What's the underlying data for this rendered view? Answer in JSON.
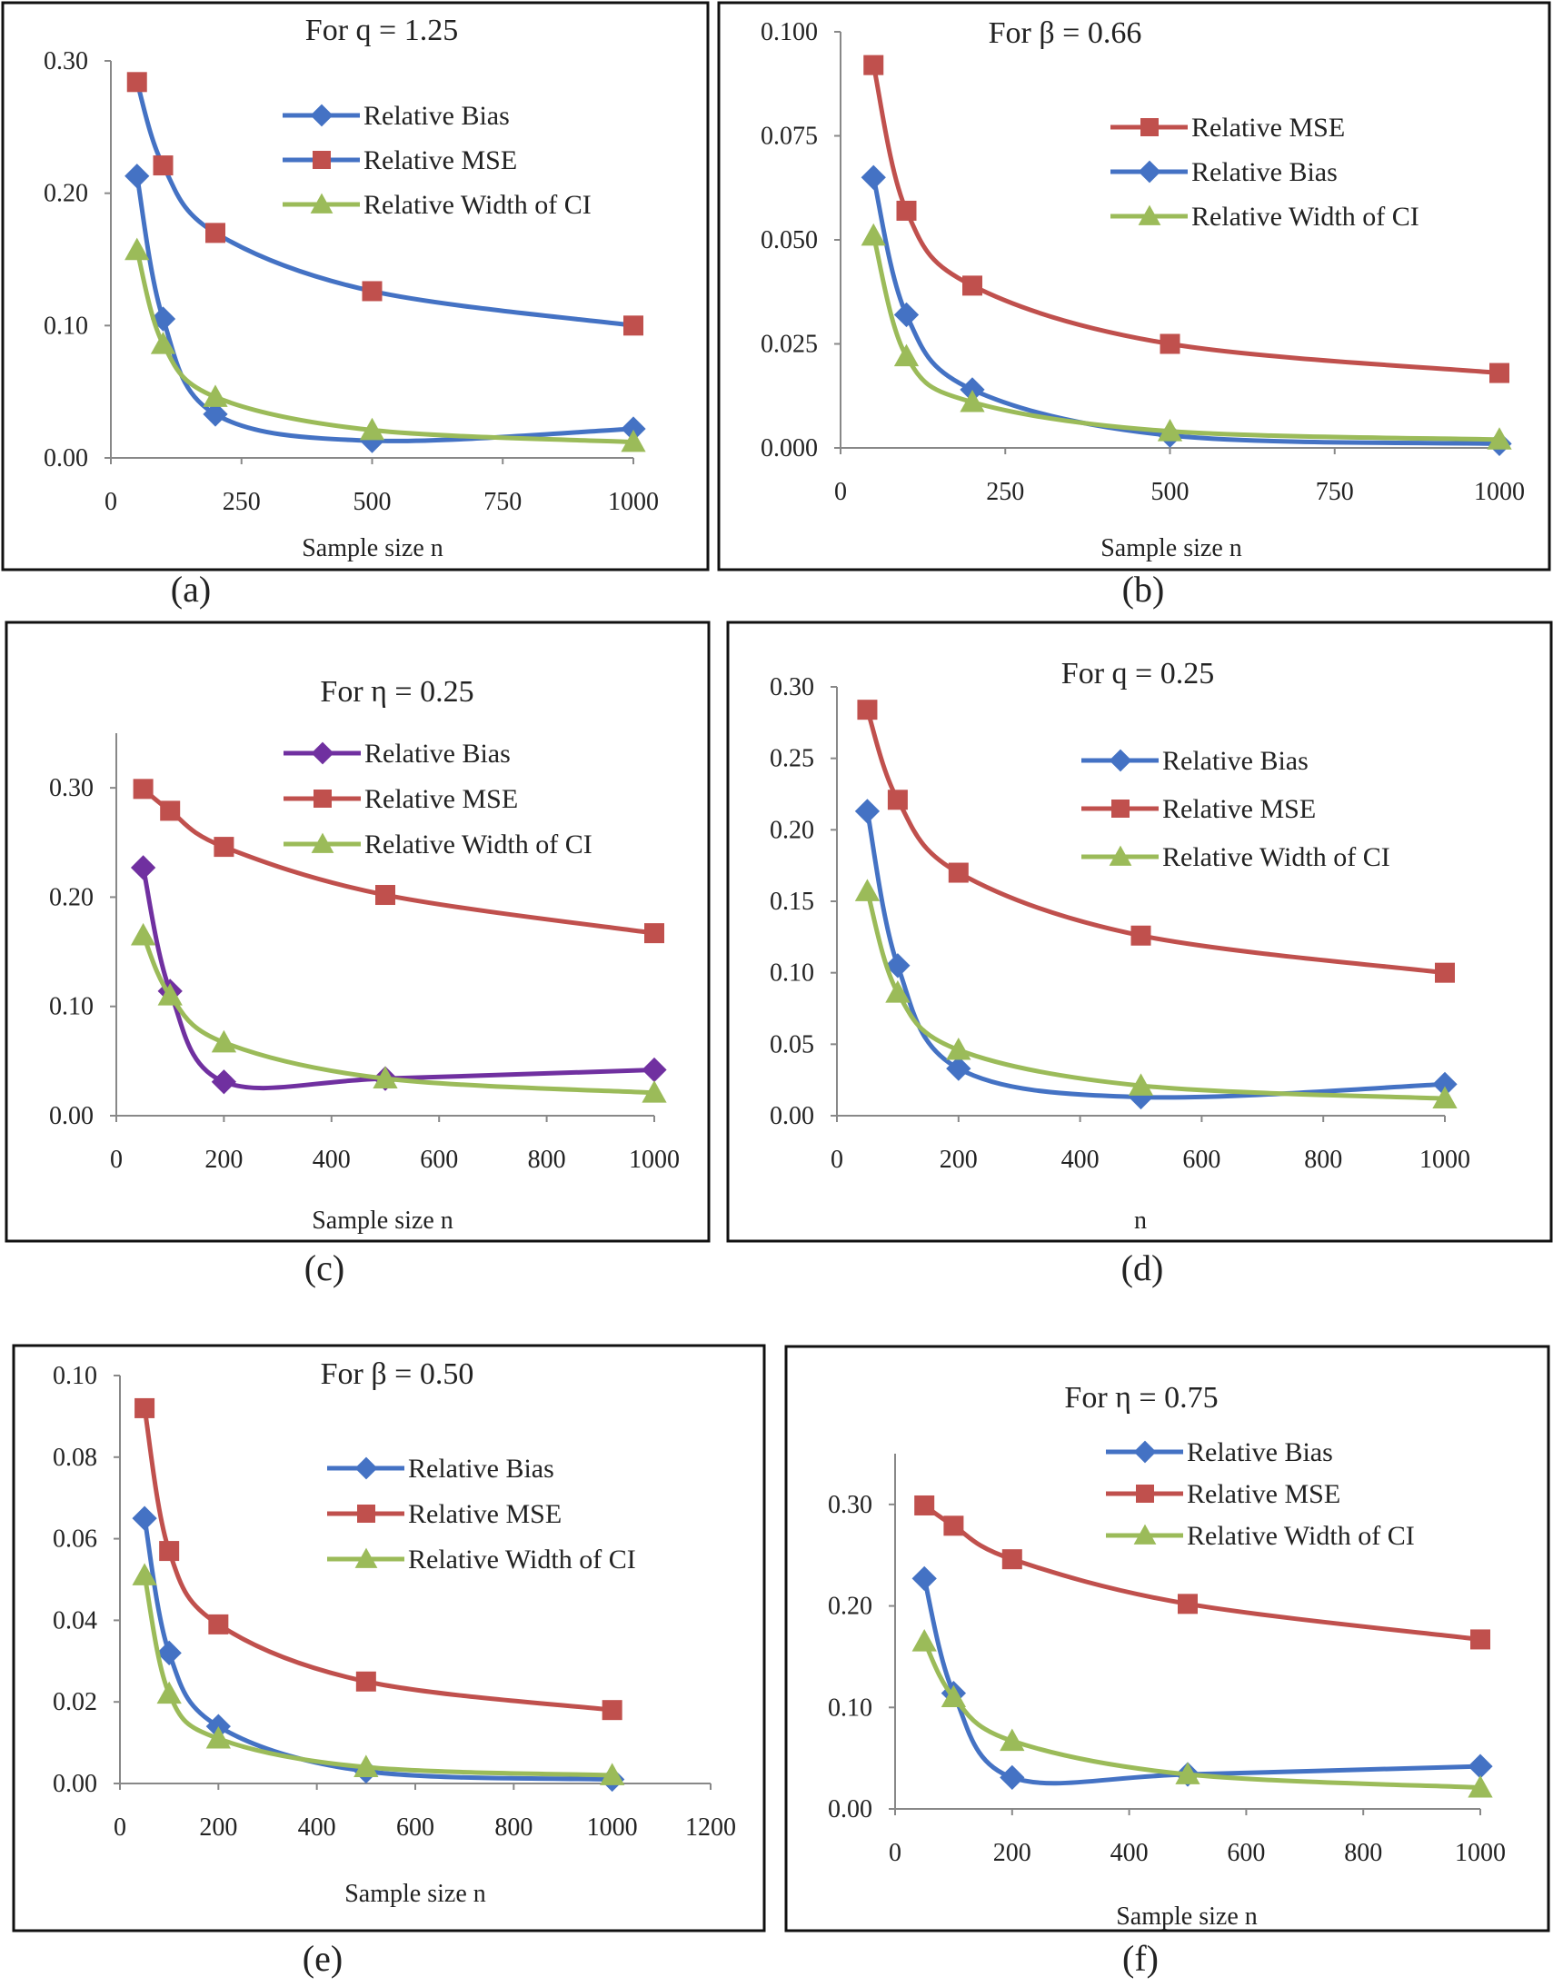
{
  "colors": {
    "blue": "#4472C4",
    "red": "#C0504D",
    "green": "#9BBB59",
    "purple": "#7030A0",
    "axis": "#888888",
    "frame": "#111111"
  },
  "panel_labels": [
    "(a)",
    "(b)",
    "(c)",
    "(d)",
    "(e)",
    "(f)"
  ],
  "chart_data": [
    {
      "type": "line",
      "title": "For q = 1.25",
      "xlabel": "Sample size n",
      "ylabel": "",
      "xlim": [
        0,
        1000
      ],
      "ylim": [
        0,
        0.3
      ],
      "xticks": [
        0,
        250,
        500,
        750,
        1000
      ],
      "xtick_labels": [
        "0",
        "250",
        "500",
        "750",
        "1000"
      ],
      "yticks": [
        0,
        0.1,
        0.2,
        0.3
      ],
      "ytick_labels": [
        "0.00",
        "0.10",
        "0.20",
        "0.30"
      ],
      "grid": false,
      "legend_position": "top-right",
      "x": [
        50,
        100,
        200,
        500,
        1000
      ],
      "series": [
        {
          "name": "Relative Bias",
          "color": "#4472C4",
          "marker": "diamond",
          "line_color": "#4472C4",
          "values": [
            0.213,
            0.105,
            0.033,
            0.013,
            0.022
          ]
        },
        {
          "name": "Relative MSE",
          "color": "#C0504D",
          "marker": "square",
          "line_color": "#4472C4",
          "values": [
            0.284,
            0.221,
            0.17,
            0.126,
            0.1
          ]
        },
        {
          "name": "Relative Width of CI",
          "color": "#9BBB59",
          "marker": "triangle",
          "line_color": "#9BBB59",
          "values": [
            0.157,
            0.086,
            0.046,
            0.021,
            0.012
          ]
        }
      ]
    },
    {
      "type": "line",
      "title": "For β = 0.66",
      "xlabel": "Sample size n",
      "ylabel": "",
      "xlim": [
        0,
        1000
      ],
      "ylim": [
        0,
        0.1
      ],
      "xticks": [
        0,
        250,
        500,
        750,
        1000
      ],
      "xtick_labels": [
        "0",
        "250",
        "500",
        "750",
        "1000"
      ],
      "yticks": [
        0,
        0.025,
        0.05,
        0.075,
        0.1
      ],
      "ytick_labels": [
        "0.000",
        "0.025",
        "0.050",
        "0.075",
        "0.100"
      ],
      "grid": false,
      "legend_position": "top-right",
      "x": [
        50,
        100,
        200,
        500,
        1000
      ],
      "series": [
        {
          "name": "Relative MSE",
          "color": "#C0504D",
          "marker": "square",
          "line_color": "#C0504D",
          "values": [
            0.092,
            0.057,
            0.039,
            0.025,
            0.018
          ]
        },
        {
          "name": "Relative Bias",
          "color": "#4472C4",
          "marker": "diamond",
          "line_color": "#4472C4",
          "values": [
            0.065,
            0.032,
            0.014,
            0.003,
            0.001
          ]
        },
        {
          "name": "Relative Width of CI",
          "color": "#9BBB59",
          "marker": "triangle",
          "line_color": "#9BBB59",
          "values": [
            0.051,
            0.022,
            0.011,
            0.004,
            0.002
          ]
        }
      ]
    },
    {
      "type": "line",
      "title": "For η = 0.25",
      "xlabel": "Sample size n",
      "ylabel": "",
      "xlim": [
        0,
        1000
      ],
      "ylim": [
        0,
        0.35
      ],
      "xticks": [
        0,
        200,
        400,
        600,
        800,
        1000
      ],
      "xtick_labels": [
        "0",
        "200",
        "400",
        "600",
        "800",
        "1000"
      ],
      "yticks": [
        0,
        0.1,
        0.2,
        0.3
      ],
      "ytick_labels": [
        "0.00",
        "0.10",
        "0.20",
        "0.30"
      ],
      "grid": false,
      "legend_position": "top-right",
      "x": [
        50,
        100,
        200,
        500,
        1000
      ],
      "series": [
        {
          "name": "Relative Bias",
          "color": "#7030A0",
          "marker": "diamond",
          "line_color": "#7030A0",
          "values": [
            0.227,
            0.114,
            0.031,
            0.034,
            0.042
          ]
        },
        {
          "name": "Relative MSE",
          "color": "#C0504D",
          "marker": "square",
          "line_color": "#C0504D",
          "values": [
            0.299,
            0.279,
            0.246,
            0.202,
            0.167
          ]
        },
        {
          "name": "Relative Width of CI",
          "color": "#9BBB59",
          "marker": "triangle",
          "line_color": "#9BBB59",
          "values": [
            0.165,
            0.11,
            0.067,
            0.034,
            0.021
          ]
        }
      ]
    },
    {
      "type": "line",
      "title": "For q = 0.25",
      "xlabel": "n",
      "ylabel": "",
      "xlim": [
        0,
        1000
      ],
      "ylim": [
        0,
        0.3
      ],
      "xticks": [
        0,
        200,
        400,
        600,
        800,
        1000
      ],
      "xtick_labels": [
        "0",
        "200",
        "400",
        "600",
        "800",
        "1000"
      ],
      "yticks": [
        0,
        0.05,
        0.1,
        0.15,
        0.2,
        0.25,
        0.3
      ],
      "ytick_labels": [
        "0.00",
        "0.05",
        "0.10",
        "0.15",
        "0.20",
        "0.25",
        "0.30"
      ],
      "grid": false,
      "legend_position": "top-right",
      "x": [
        50,
        100,
        200,
        500,
        1000
      ],
      "series": [
        {
          "name": "Relative Bias",
          "color": "#4472C4",
          "marker": "diamond",
          "line_color": "#4472C4",
          "values": [
            0.213,
            0.105,
            0.033,
            0.013,
            0.022
          ]
        },
        {
          "name": "Relative MSE",
          "color": "#C0504D",
          "marker": "square",
          "line_color": "#C0504D",
          "values": [
            0.284,
            0.221,
            0.17,
            0.126,
            0.1
          ]
        },
        {
          "name": "Relative Width of CI",
          "color": "#9BBB59",
          "marker": "triangle",
          "line_color": "#9BBB59",
          "values": [
            0.157,
            0.086,
            0.046,
            0.021,
            0.012
          ]
        }
      ]
    },
    {
      "type": "line",
      "title": "For β = 0.50",
      "xlabel": "Sample size n",
      "ylabel": "",
      "xlim": [
        0,
        1200
      ],
      "ylim": [
        0,
        0.1
      ],
      "xticks": [
        0,
        200,
        400,
        600,
        800,
        1000,
        1200
      ],
      "xtick_labels": [
        "0",
        "200",
        "400",
        "600",
        "800",
        "1000",
        "1200"
      ],
      "yticks": [
        0,
        0.02,
        0.04,
        0.06,
        0.08,
        0.1
      ],
      "ytick_labels": [
        "0.00",
        "0.02",
        "0.04",
        "0.06",
        "0.08",
        "0.10"
      ],
      "grid": false,
      "legend_position": "top-right",
      "x": [
        50,
        100,
        200,
        500,
        1000
      ],
      "series": [
        {
          "name": "Relative Bias",
          "color": "#4472C4",
          "marker": "diamond",
          "line_color": "#4472C4",
          "values": [
            0.065,
            0.032,
            0.014,
            0.003,
            0.001
          ]
        },
        {
          "name": "Relative MSE",
          "color": "#C0504D",
          "marker": "square",
          "line_color": "#C0504D",
          "values": [
            0.092,
            0.057,
            0.039,
            0.025,
            0.018
          ]
        },
        {
          "name": "Relative Width of CI",
          "color": "#9BBB59",
          "marker": "triangle",
          "line_color": "#9BBB59",
          "values": [
            0.051,
            0.022,
            0.011,
            0.004,
            0.002
          ]
        }
      ]
    },
    {
      "type": "line",
      "title": "For η = 0.75",
      "xlabel": "Sample size n",
      "ylabel": "",
      "xlim": [
        0,
        1000
      ],
      "ylim": [
        0,
        0.35
      ],
      "xticks": [
        0,
        200,
        400,
        600,
        800,
        1000
      ],
      "xtick_labels": [
        "0",
        "200",
        "400",
        "600",
        "800",
        "1000"
      ],
      "yticks": [
        0,
        0.1,
        0.2,
        0.3
      ],
      "ytick_labels": [
        "0.00",
        "0.10",
        "0.20",
        "0.30"
      ],
      "grid": false,
      "legend_position": "top-right",
      "x": [
        50,
        100,
        200,
        500,
        1000
      ],
      "series": [
        {
          "name": "Relative Bias",
          "color": "#4472C4",
          "marker": "diamond",
          "line_color": "#4472C4",
          "values": [
            0.227,
            0.114,
            0.031,
            0.034,
            0.042
          ]
        },
        {
          "name": "Relative MSE",
          "color": "#C0504D",
          "marker": "square",
          "line_color": "#C0504D",
          "values": [
            0.299,
            0.279,
            0.246,
            0.202,
            0.167
          ]
        },
        {
          "name": "Relative Width of CI",
          "color": "#9BBB59",
          "marker": "triangle",
          "line_color": "#9BBB59",
          "values": [
            0.165,
            0.11,
            0.067,
            0.034,
            0.021
          ]
        }
      ]
    }
  ]
}
